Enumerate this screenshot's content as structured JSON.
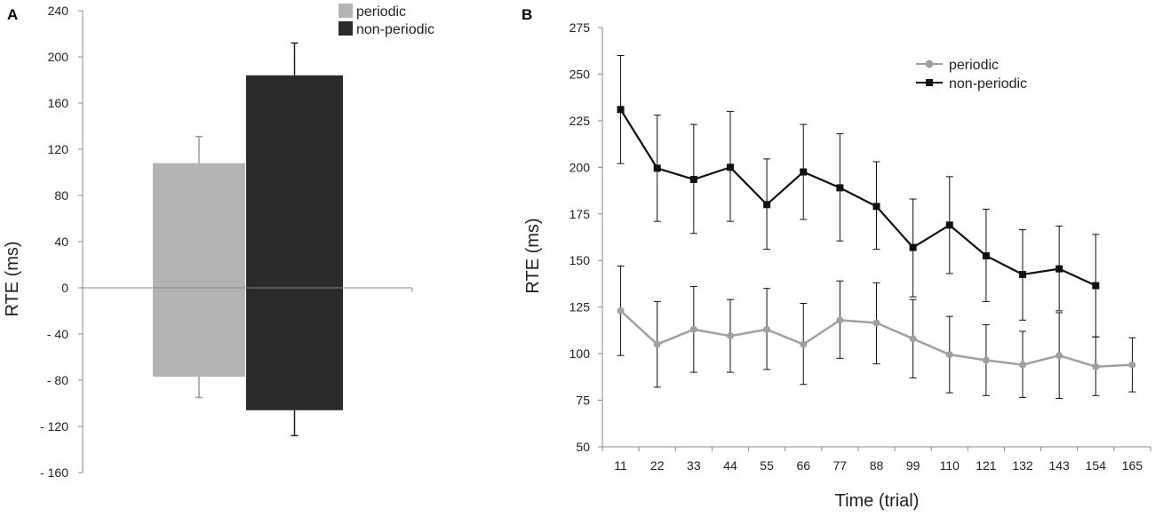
{
  "colors": {
    "periodic": "#b3b3b3",
    "non_periodic": "#2a2a2a",
    "axis": "#888888",
    "line_periodic": "#a0a0a0",
    "line_non_periodic": "#111111"
  },
  "chart_data": [
    {
      "panel": "A",
      "type": "bar",
      "ylabel": "RTE (ms)",
      "ylim": [
        -160,
        240
      ],
      "yticks": [
        240,
        200,
        160,
        120,
        80,
        40,
        0,
        -40,
        -80,
        -120,
        -160
      ],
      "ytick_labels": [
        "240",
        "200",
        "160",
        "120",
        "80",
        "40",
        "0",
        "- 40",
        "- 80",
        "- 120",
        "- 160"
      ],
      "legend": [
        "periodic",
        "non-periodic"
      ],
      "legend_position": "top-right",
      "series": [
        {
          "name": "periodic",
          "positive": {
            "value": 108,
            "err_top": 131
          },
          "negative": {
            "value": -77,
            "err_bottom": -95
          }
        },
        {
          "name": "non-periodic",
          "positive": {
            "value": 184,
            "err_top": 212
          },
          "negative": {
            "value": -106,
            "err_bottom": -128
          }
        }
      ]
    },
    {
      "panel": "B",
      "type": "line",
      "xlabel": "Time (trial)",
      "ylabel": "RTE (ms)",
      "ylim": [
        50,
        275
      ],
      "yticks": [
        50,
        75,
        100,
        125,
        150,
        175,
        200,
        225,
        250,
        275
      ],
      "x": [
        11,
        22,
        33,
        44,
        55,
        66,
        77,
        88,
        99,
        110,
        121,
        132,
        143,
        154,
        165
      ],
      "legend_position": "top-right",
      "series": [
        {
          "name": "periodic",
          "marker": "circle",
          "values": [
            123,
            105,
            113,
            109.5,
            113,
            105,
            118,
            116.5,
            108,
            99.5,
            96.5,
            94,
            99,
            93,
            94
          ],
          "err_low": [
            99,
            82,
            90,
            90,
            91.5,
            83.5,
            97.5,
            94.5,
            87,
            79,
            77.5,
            76.5,
            76,
            77.5,
            79.5
          ],
          "err_high": [
            147,
            128,
            136,
            129,
            135,
            127,
            139,
            138,
            129,
            120,
            115.5,
            112,
            122,
            109,
            108.5
          ]
        },
        {
          "name": "non-periodic",
          "marker": "square",
          "values": [
            231,
            199.5,
            193.5,
            200,
            180,
            197.5,
            189,
            179,
            157,
            169,
            152.5,
            142.5,
            145.5,
            136.5,
            null
          ],
          "err_low": [
            202,
            171,
            164.5,
            171,
            156,
            172,
            160.5,
            156,
            130.5,
            143,
            128,
            118,
            123,
            109,
            null
          ],
          "err_high": [
            260,
            228,
            223,
            230,
            204.5,
            223,
            218,
            203,
            183,
            195,
            177.5,
            166.5,
            168.5,
            164,
            null
          ]
        }
      ]
    }
  ]
}
